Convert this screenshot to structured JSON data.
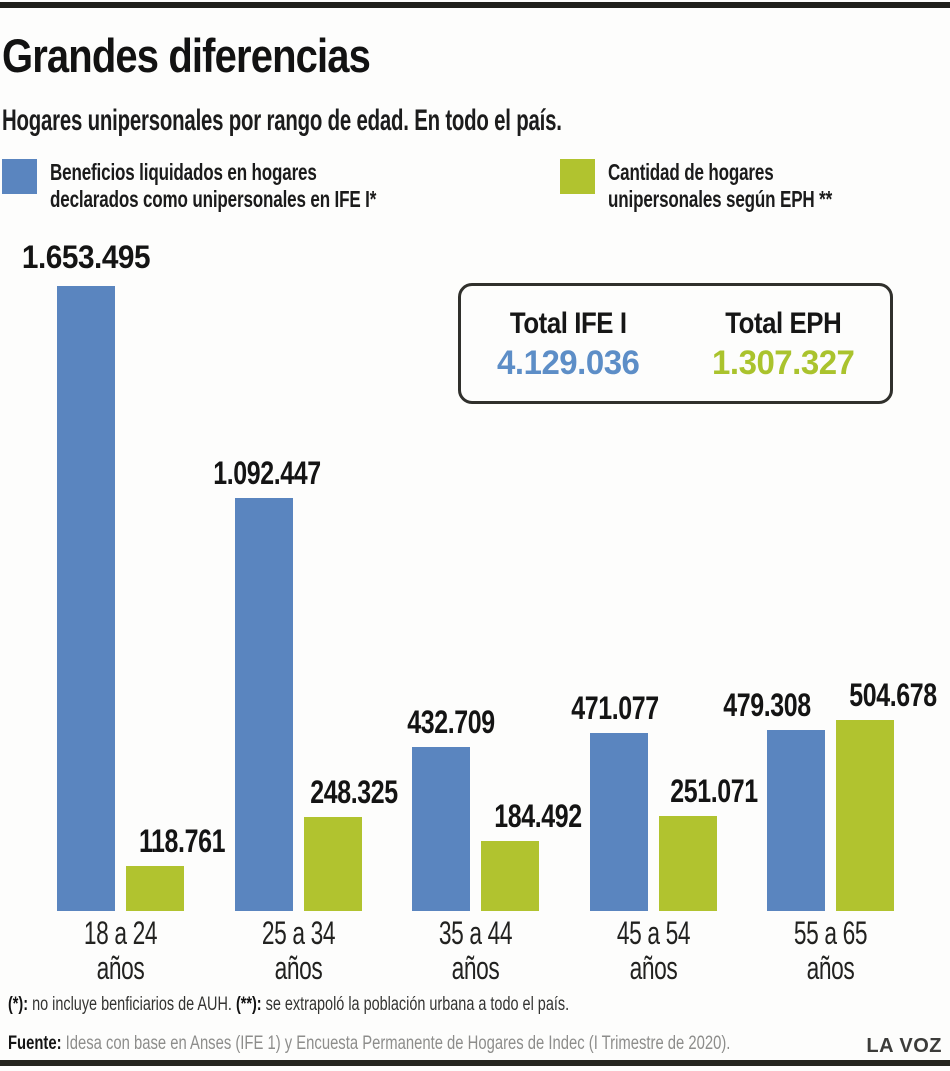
{
  "header": {
    "title": "Grandes diferencias",
    "subtitle": "Hogares unipersonales por rango de edad. En todo el país."
  },
  "colors": {
    "ife_blue": "#5a85bf",
    "eph_green": "#b1c32f",
    "total_ife_blue": "#5d8ec7",
    "total_eph_green": "#aac32d",
    "text_dark": "#141414",
    "source_grey": "#8d8d8b"
  },
  "legend": {
    "ife": {
      "line1": "Beneficios liquidados en hogares",
      "line2": "declarados como unipersonales en IFE I*"
    },
    "eph": {
      "line1": "Cantidad de hogares",
      "line2": "unipersonales según EPH **"
    }
  },
  "totals": {
    "ife": {
      "label": "Total IFE I",
      "value": "4.129.036"
    },
    "eph": {
      "label": "Total EPH",
      "value": "1.307.327"
    }
  },
  "chart_data": {
    "type": "bar",
    "title": "Grandes diferencias",
    "subtitle": "Hogares unipersonales por rango de edad. En todo el país.",
    "categories": [
      {
        "line1": "18 a 24",
        "line2": "años"
      },
      {
        "line1": "25 a 34",
        "line2": "años"
      },
      {
        "line1": "35 a 44",
        "line2": "años"
      },
      {
        "line1": "45 a 54",
        "line2": "años"
      },
      {
        "line1": "55 a 65",
        "line2": "años"
      }
    ],
    "series": [
      {
        "name": "IFE I",
        "color": "#5a85bf",
        "values": [
          1653495,
          1092447,
          432709,
          471077,
          479308
        ],
        "labels": [
          "1.653.495",
          "1.092.447",
          "432.709",
          "471.077",
          "479.308"
        ],
        "total": 4129036
      },
      {
        "name": "EPH",
        "color": "#b1c32f",
        "values": [
          118761,
          248325,
          184492,
          251071,
          504678
        ],
        "labels": [
          "118.761",
          "248.325",
          "184.492",
          "251.071",
          "504.678"
        ],
        "total": 1307327
      }
    ],
    "ylim": [
      0,
      1653495
    ],
    "grid": false,
    "legend_position": "top"
  },
  "footnote": {
    "mark1": "(*):",
    "text1": " no incluye benficiarios de AUH. ",
    "mark2": "(**):",
    "text2": " se extrapoló la población urbana a todo el país."
  },
  "source": {
    "label": "Fuente:",
    "text": " Idesa con base en Anses (IFE 1) y Encuesta Permanente de Hogares de Indec (I Trimestre de 2020).",
    "brand": "LA VOZ"
  }
}
